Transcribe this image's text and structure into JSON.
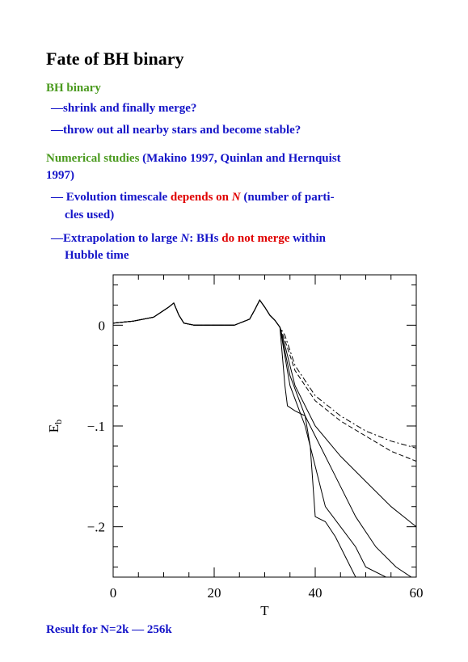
{
  "title": "Fate of BH binary",
  "lines": [
    {
      "style": "heading",
      "segments": [
        {
          "text": "BH binary",
          "color": "#4a9a1e"
        }
      ]
    },
    {
      "style": "item",
      "segments": [
        {
          "text": "—shrink and finally merge?",
          "color": "#1414c8"
        }
      ]
    },
    {
      "style": "item",
      "segments": [
        {
          "text": "—throw out all nearby stars and become stable?",
          "color": "#1414c8"
        }
      ]
    },
    {
      "style": "heading",
      "segments": [
        {
          "text": "Numerical studies",
          "color": "#4a9a1e"
        },
        {
          "text": " (Makino 1997, Quinlan and Hernquist",
          "color": "#1414c8"
        }
      ]
    },
    {
      "style": "heading",
      "segments": [
        {
          "text": "1997)",
          "color": "#1414c8"
        }
      ]
    },
    {
      "style": "item",
      "segments": [
        {
          "text": "— Evolution timescale ",
          "color": "#1414c8"
        },
        {
          "text": "depends on ",
          "color": "#e00000"
        },
        {
          "text": "N",
          "color": "#e00000",
          "italic": true
        },
        {
          "text": " (number of parti-",
          "color": "#1414c8"
        }
      ]
    },
    {
      "style": "continuation",
      "segments": [
        {
          "text": "cles used)",
          "color": "#1414c8"
        }
      ]
    },
    {
      "style": "item",
      "segments": [
        {
          "text": "—Extrapolation to large ",
          "color": "#1414c8"
        },
        {
          "text": "N",
          "color": "#1414c8",
          "italic": true
        },
        {
          "text": ": BHs ",
          "color": "#1414c8"
        },
        {
          "text": "do not merge",
          "color": "#e00000"
        },
        {
          "text": " within",
          "color": "#1414c8"
        }
      ]
    },
    {
      "style": "continuation",
      "segments": [
        {
          "text": "Hubble time",
          "color": "#1414c8"
        }
      ]
    }
  ],
  "chart_data": {
    "type": "line",
    "xlabel": "T",
    "ylabel": {
      "main": "E",
      "sub": "b"
    },
    "xlim": [
      0,
      60
    ],
    "ylim": [
      -0.25,
      0.05
    ],
    "xticks": [
      0,
      20,
      40,
      60
    ],
    "yticks": [
      {
        "value": 0,
        "label": "0"
      },
      {
        "value": -0.1,
        "label": "−.1"
      },
      {
        "value": -0.2,
        "label": "−.2"
      }
    ],
    "xminorticks": [
      5,
      10,
      15,
      25,
      30,
      35,
      45,
      50,
      55
    ],
    "yminorticks": [
      0.04,
      0.02,
      -0.02,
      -0.04,
      -0.06,
      -0.08,
      -0.12,
      -0.14,
      -0.16,
      -0.18,
      -0.22,
      -0.24
    ],
    "series": [
      {
        "color": "#000000",
        "dash": "dashdot",
        "x": [
          0,
          4,
          8,
          11,
          12,
          13,
          14,
          16,
          24,
          27,
          28,
          29,
          30,
          31,
          32,
          33,
          34,
          36,
          40,
          45,
          50,
          55,
          60
        ],
        "y": [
          0.002,
          0.004,
          0.008,
          0.018,
          0.022,
          0.01,
          0.002,
          0,
          0,
          0.006,
          0.015,
          0.025,
          0.018,
          0.01,
          0.005,
          -0.002,
          -0.01,
          -0.04,
          -0.07,
          -0.09,
          -0.105,
          -0.115,
          -0.122
        ]
      },
      {
        "color": "#000000",
        "dash": "dashed",
        "x": [
          0,
          4,
          8,
          11,
          12,
          13,
          14,
          16,
          24,
          27,
          28,
          29,
          30,
          31,
          32,
          33,
          34,
          36,
          40,
          45,
          50,
          55,
          60
        ],
        "y": [
          0.002,
          0.004,
          0.008,
          0.018,
          0.022,
          0.01,
          0.002,
          0,
          0,
          0.006,
          0.015,
          0.025,
          0.018,
          0.01,
          0.005,
          -0.002,
          -0.015,
          -0.045,
          -0.075,
          -0.095,
          -0.11,
          -0.125,
          -0.135
        ]
      },
      {
        "color": "#000000",
        "dash": "solid",
        "x": [
          0,
          4,
          8,
          11,
          12,
          13,
          14,
          16,
          24,
          27,
          28,
          29,
          30,
          31,
          32,
          33,
          34,
          36,
          40,
          45,
          50,
          55,
          60
        ],
        "y": [
          0.002,
          0.004,
          0.008,
          0.018,
          0.022,
          0.01,
          0.002,
          0,
          0,
          0.006,
          0.015,
          0.025,
          0.018,
          0.01,
          0.005,
          -0.002,
          -0.02,
          -0.06,
          -0.1,
          -0.13,
          -0.155,
          -0.18,
          -0.2
        ]
      },
      {
        "color": "#000000",
        "dash": "solid",
        "x": [
          0,
          4,
          8,
          11,
          12,
          13,
          14,
          16,
          24,
          27,
          28,
          29,
          30,
          31,
          32,
          33,
          35,
          38,
          40,
          44,
          48,
          52,
          56,
          59
        ],
        "y": [
          0.002,
          0.004,
          0.008,
          0.018,
          0.022,
          0.01,
          0.002,
          0,
          0,
          0.006,
          0.015,
          0.025,
          0.018,
          0.01,
          0.005,
          -0.002,
          -0.05,
          -0.09,
          -0.11,
          -0.15,
          -0.19,
          -0.22,
          -0.24,
          -0.25
        ]
      },
      {
        "color": "#000000",
        "dash": "solid",
        "x": [
          0,
          4,
          8,
          11,
          12,
          13,
          14,
          16,
          24,
          27,
          28,
          29,
          30,
          31,
          32,
          33,
          35,
          38,
          40,
          42,
          45,
          48,
          50,
          54
        ],
        "y": [
          0.002,
          0.004,
          0.008,
          0.018,
          0.022,
          0.01,
          0.002,
          0,
          0,
          0.006,
          0.015,
          0.025,
          0.018,
          0.01,
          0.005,
          -0.002,
          -0.06,
          -0.1,
          -0.14,
          -0.18,
          -0.2,
          -0.22,
          -0.24,
          -0.25
        ]
      },
      {
        "color": "#000000",
        "dash": "solid",
        "x": [
          0,
          4,
          8,
          11,
          12,
          13,
          14,
          16,
          24,
          27,
          28,
          29,
          30,
          31,
          32,
          33,
          34,
          34.5,
          36,
          38,
          39,
          40,
          42,
          44,
          46,
          48
        ],
        "y": [
          0.002,
          0.004,
          0.008,
          0.018,
          0.022,
          0.01,
          0.002,
          0,
          0,
          0.006,
          0.015,
          0.025,
          0.018,
          0.01,
          0.005,
          -0.002,
          -0.06,
          -0.08,
          -0.085,
          -0.09,
          -0.12,
          -0.19,
          -0.195,
          -0.21,
          -0.23,
          -0.25
        ]
      }
    ]
  },
  "footer": "Result for N=2k — 256k"
}
